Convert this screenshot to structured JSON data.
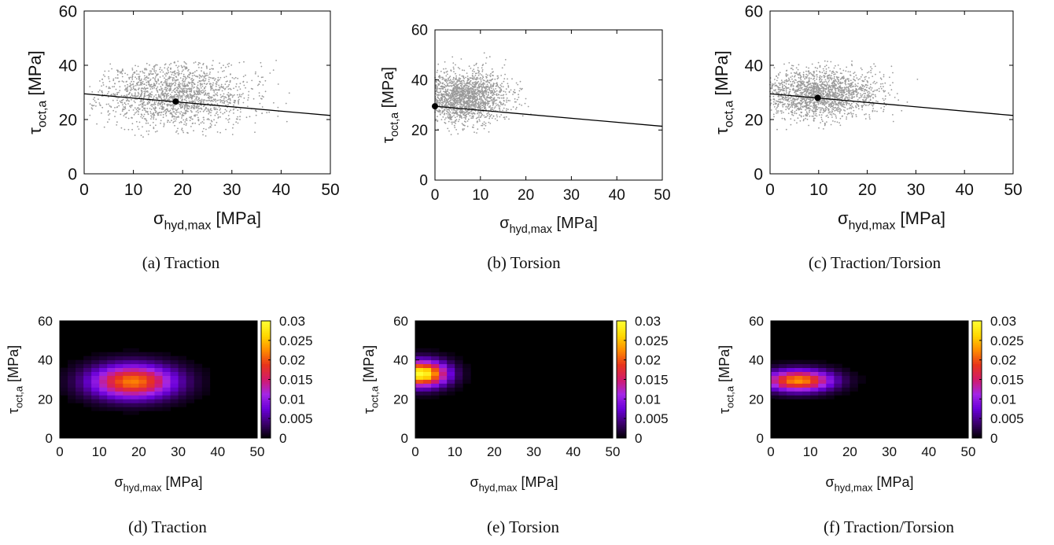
{
  "common": {
    "scatter_color": "#9a9a9a",
    "fit_color": "#000000",
    "colormap": [
      "#000000",
      "#3b006b",
      "#6a00d9",
      "#a426e6",
      "#d21a6a",
      "#e8341c",
      "#ff8c00",
      "#ffd800",
      "#ffff33"
    ]
  },
  "chart_data": [
    {
      "panel": "a",
      "type": "scatter",
      "caption": "(a) Traction",
      "xlabel_main": "σ",
      "xlabel_sub": "hyd,max",
      "xlabel_unit": " [MPa]",
      "ylabel_main": "τ",
      "ylabel_sub": "oct,a",
      "ylabel_unit": " [MPa]",
      "xlim": [
        0,
        50
      ],
      "ylim": [
        0,
        60
      ],
      "xticks": [
        "0",
        "10",
        "20",
        "30",
        "40",
        "50"
      ],
      "yticks": [
        "0",
        "20",
        "40",
        "60"
      ],
      "cloud": {
        "cx": 18.5,
        "cy": 29,
        "sx": 7.5,
        "sy": 6,
        "n": 1800,
        "xmin": 1,
        "xmax": 44,
        "ymin": 13,
        "ymax": 42,
        "seed": 11
      },
      "fit_line": [
        [
          0,
          29.5
        ],
        [
          50,
          21.5
        ]
      ],
      "fit_point": [
        18.6,
        26.6
      ]
    },
    {
      "panel": "b",
      "type": "scatter",
      "caption": "(b) Torsion",
      "xlabel_main": "σ",
      "xlabel_sub": "hyd,max",
      "xlabel_unit": " [MPa]",
      "ylabel_main": "τ",
      "ylabel_sub": "oct,a",
      "ylabel_unit": " [MPa]",
      "xlim": [
        0,
        50
      ],
      "ylim": [
        0,
        60
      ],
      "xticks": [
        "0",
        "10",
        "20",
        "30",
        "40",
        "50"
      ],
      "yticks": [
        "0",
        "20",
        "40",
        "60"
      ],
      "cloud": {
        "cx": 6,
        "cy": 33,
        "sx": 5,
        "sy": 5,
        "n": 1700,
        "xmin": 0,
        "xmax": 29,
        "ymin": 18,
        "ymax": 53,
        "seed": 23
      },
      "fit_line": [
        [
          0,
          29.5
        ],
        [
          50,
          21.5
        ]
      ],
      "fit_point": [
        0,
        29.5
      ]
    },
    {
      "panel": "c",
      "type": "scatter",
      "caption": "(c) Traction/Torsion",
      "xlabel_main": "σ",
      "xlabel_sub": "hyd,max",
      "xlabel_unit": " [MPa]",
      "ylabel_main": "τ",
      "ylabel_sub": "oct,a",
      "ylabel_unit": " [MPa]",
      "xlim": [
        0,
        50
      ],
      "ylim": [
        0,
        60
      ],
      "xticks": [
        "0",
        "10",
        "20",
        "30",
        "40",
        "50"
      ],
      "yticks": [
        "0",
        "20",
        "40",
        "60"
      ],
      "cloud": {
        "cx": 10,
        "cy": 29.5,
        "sx": 6,
        "sy": 4.5,
        "n": 1800,
        "xmin": 0,
        "xmax": 31,
        "ymin": 16,
        "ymax": 42,
        "seed": 37
      },
      "fit_line": [
        [
          0,
          29.5
        ],
        [
          50,
          21.5
        ]
      ],
      "fit_point": [
        9.8,
        28
      ]
    },
    {
      "panel": "d",
      "type": "heatmap",
      "caption": "(d) Traction",
      "xlabel_main": "σ",
      "xlabel_sub": "hyd,max",
      "xlabel_unit": " [MPa]",
      "ylabel_main": "τ",
      "ylabel_sub": "oct,a",
      "ylabel_unit": " [MPa]",
      "xlim": [
        0,
        50
      ],
      "ylim": [
        0,
        60
      ],
      "xticks": [
        "0",
        "10",
        "20",
        "30",
        "40",
        "50"
      ],
      "yticks": [
        "0",
        "20",
        "40",
        "60"
      ],
      "colorbar_range": [
        0,
        0.03
      ],
      "colorbar_ticks": [
        "0",
        "0.005",
        "0.01",
        "0.015",
        "0.02",
        "0.025",
        "0.03"
      ],
      "bins": {
        "nx": 25,
        "ny": 30
      },
      "density": {
        "cx": 18.5,
        "cy": 29,
        "sx": 7.5,
        "sy": 6,
        "peak": 0.022,
        "cut": 0.0006
      }
    },
    {
      "panel": "e",
      "type": "heatmap",
      "caption": "(e) Torsion",
      "xlabel_main": "σ",
      "xlabel_sub": "hyd,max",
      "xlabel_unit": " [MPa]",
      "ylabel_main": "τ",
      "ylabel_sub": "oct,a",
      "ylabel_unit": " [MPa]",
      "xlim": [
        0,
        50
      ],
      "ylim": [
        0,
        60
      ],
      "xticks": [
        "0",
        "10",
        "20",
        "30",
        "40",
        "50"
      ],
      "yticks": [
        "0",
        "20",
        "40",
        "60"
      ],
      "colorbar_range": [
        0,
        0.03
      ],
      "colorbar_ticks": [
        "0",
        "0.005",
        "0.01",
        "0.015",
        "0.02",
        "0.025",
        "0.03"
      ],
      "bins": {
        "nx": 25,
        "ny": 30
      },
      "density": {
        "cx": 1.5,
        "cy": 33,
        "sx": 4.5,
        "sy": 4.5,
        "peak": 0.03,
        "cut": 0.0006
      }
    },
    {
      "panel": "f",
      "type": "heatmap",
      "caption": "(f) Traction/Torsion",
      "xlabel_main": "σ",
      "xlabel_sub": "hyd,max",
      "xlabel_unit": " [MPa]",
      "ylabel_main": "τ",
      "ylabel_sub": "oct,a",
      "ylabel_unit": " [MPa]",
      "xlim": [
        0,
        50
      ],
      "ylim": [
        0,
        60
      ],
      "xticks": [
        "0",
        "10",
        "20",
        "30",
        "40",
        "50"
      ],
      "yticks": [
        "0",
        "20",
        "40",
        "60"
      ],
      "colorbar_range": [
        0,
        0.03
      ],
      "colorbar_ticks": [
        "0",
        "0.005",
        "0.01",
        "0.015",
        "0.02",
        "0.025",
        "0.03"
      ],
      "bins": {
        "nx": 25,
        "ny": 30
      },
      "density": {
        "cx": 7,
        "cy": 29.5,
        "sx": 6,
        "sy": 3.8,
        "peak": 0.023,
        "cut": 0.0006
      }
    }
  ]
}
